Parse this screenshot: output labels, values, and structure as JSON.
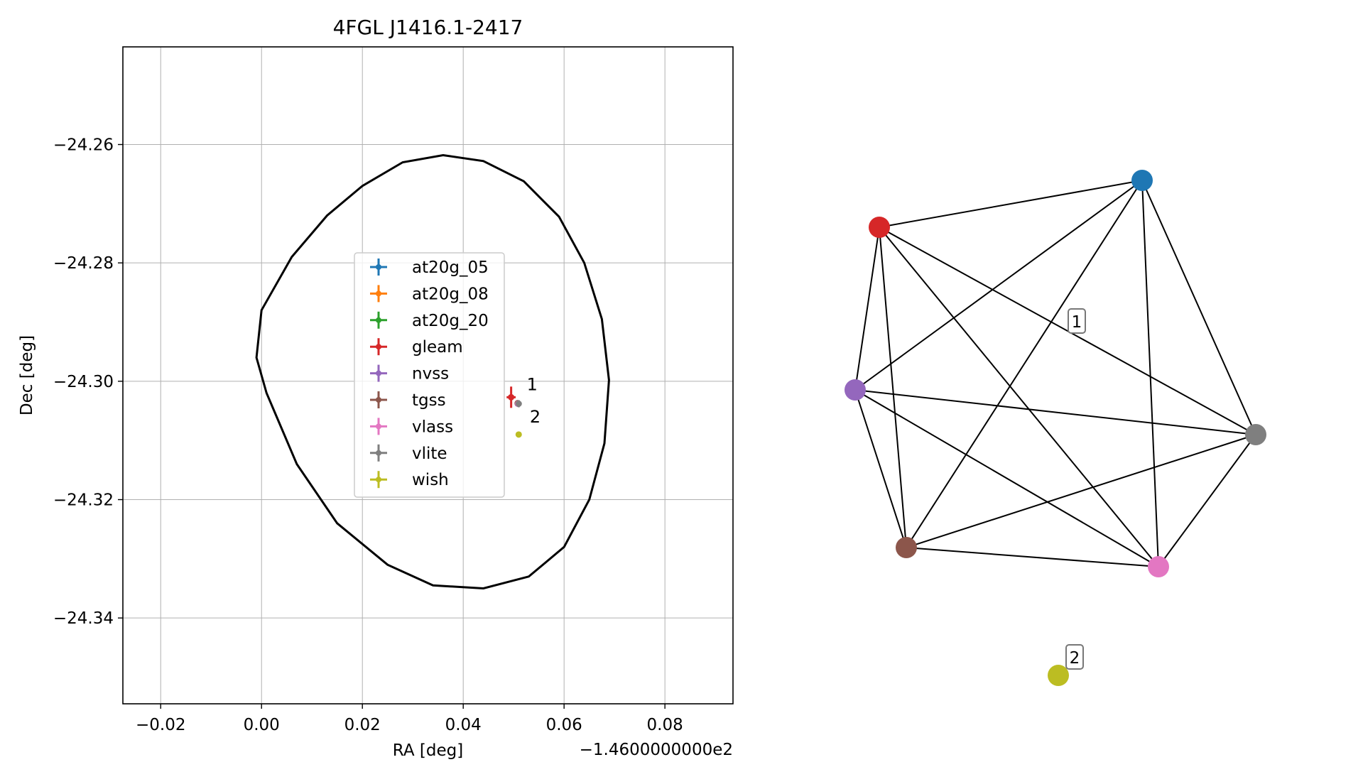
{
  "chart_data": [
    {
      "type": "scatter",
      "title": "4FGL J1416.1-2417",
      "xlabel": "RA [deg]",
      "ylabel": "Dec [deg]",
      "x_offset_label": "−1.4600000000e2",
      "xlim": [
        -0.0275,
        0.0935
      ],
      "ylim": [
        -24.3545,
        -24.2435
      ],
      "xticks": [
        -0.02,
        0.0,
        0.02,
        0.04,
        0.06,
        0.08
      ],
      "xtick_labels": [
        "−0.02",
        "0.00",
        "0.02",
        "0.04",
        "0.06",
        "0.08"
      ],
      "yticks": [
        -24.26,
        -24.28,
        -24.3,
        -24.32,
        -24.34
      ],
      "ytick_labels": [
        "−24.26",
        "−24.28",
        "−24.30",
        "−24.32",
        "−24.34"
      ],
      "grid": true,
      "legend_position": "center",
      "ellipse": {
        "color": "#000000",
        "points": [
          [
            0.036,
            -24.2618
          ],
          [
            0.044,
            -24.2628
          ],
          [
            0.052,
            -24.2662
          ],
          [
            0.059,
            -24.2722
          ],
          [
            0.064,
            -24.28
          ],
          [
            0.0675,
            -24.2895
          ],
          [
            0.0689,
            -24.2998
          ],
          [
            0.068,
            -24.3105
          ],
          [
            0.065,
            -24.32
          ],
          [
            0.06,
            -24.328
          ],
          [
            0.053,
            -24.333
          ],
          [
            0.044,
            -24.335
          ],
          [
            0.034,
            -24.3345
          ],
          [
            0.025,
            -24.331
          ],
          [
            0.015,
            -24.324
          ],
          [
            0.007,
            -24.314
          ],
          [
            0.001,
            -24.302
          ],
          [
            -0.001,
            -24.296
          ],
          [
            0.0,
            -24.288
          ],
          [
            0.006,
            -24.279
          ],
          [
            0.013,
            -24.272
          ],
          [
            0.02,
            -24.267
          ],
          [
            0.028,
            -24.263
          ]
        ]
      },
      "series": [
        {
          "name": "at20g_05",
          "color": "#1f77b4",
          "points": []
        },
        {
          "name": "at20g_08",
          "color": "#ff7f0e",
          "points": []
        },
        {
          "name": "at20g_20",
          "color": "#2ca02c",
          "points": []
        },
        {
          "name": "gleam",
          "color": "#d62728",
          "points": [
            {
              "x": 0.0495,
              "y": -24.3027,
              "xerr": 0.0009,
              "yerr": 0.0018
            }
          ]
        },
        {
          "name": "nvss",
          "color": "#9467bd",
          "points": [
            {
              "x": 0.0508,
              "y": -24.3038,
              "xerr": 0.0001,
              "yerr": 0.0001
            }
          ]
        },
        {
          "name": "tgss",
          "color": "#8c564b",
          "points": [
            {
              "x": 0.0508,
              "y": -24.3037,
              "xerr": 0.0002,
              "yerr": 0.0002
            }
          ]
        },
        {
          "name": "vlass",
          "color": "#e377c2",
          "points": [
            {
              "x": 0.0509,
              "y": -24.3038,
              "xerr": 0.0001,
              "yerr": 0.0001
            }
          ]
        },
        {
          "name": "vlite",
          "color": "#7f7f7f",
          "points": [
            {
              "x": 0.051,
              "y": -24.3038,
              "xerr": 0.0006,
              "yerr": 0.0006
            }
          ]
        },
        {
          "name": "wish",
          "color": "#bcbd22",
          "points": [
            {
              "x": 0.051,
              "y": -24.309,
              "xerr": 0.0002,
              "yerr": 0.0002
            }
          ]
        }
      ],
      "annotations": [
        {
          "text": "1",
          "x": 0.0526,
          "y": -24.3015
        },
        {
          "text": "2",
          "x": 0.0532,
          "y": -24.307
        }
      ]
    },
    {
      "type": "network",
      "nodes": [
        {
          "id": "at20g_05",
          "color": "#1f77b4"
        },
        {
          "id": "gleam",
          "color": "#d62728"
        },
        {
          "id": "nvss",
          "color": "#9467bd"
        },
        {
          "id": "tgss",
          "color": "#8c564b"
        },
        {
          "id": "vlass",
          "color": "#e377c2"
        },
        {
          "id": "vlite",
          "color": "#7f7f7f"
        },
        {
          "id": "wish",
          "color": "#bcbd22"
        }
      ],
      "edges": [
        [
          "at20g_05",
          "gleam"
        ],
        [
          "at20g_05",
          "nvss"
        ],
        [
          "at20g_05",
          "tgss"
        ],
        [
          "at20g_05",
          "vlass"
        ],
        [
          "at20g_05",
          "vlite"
        ],
        [
          "gleam",
          "nvss"
        ],
        [
          "gleam",
          "tgss"
        ],
        [
          "gleam",
          "vlass"
        ],
        [
          "gleam",
          "vlite"
        ],
        [
          "nvss",
          "tgss"
        ],
        [
          "nvss",
          "vlass"
        ],
        [
          "nvss",
          "vlite"
        ],
        [
          "tgss",
          "vlass"
        ],
        [
          "tgss",
          "vlite"
        ],
        [
          "vlass",
          "vlite"
        ]
      ],
      "groups": [
        {
          "label": "1",
          "members": [
            "at20g_05",
            "gleam",
            "nvss",
            "tgss",
            "vlass",
            "vlite"
          ]
        },
        {
          "label": "2",
          "members": [
            "wish"
          ]
        }
      ]
    }
  ]
}
